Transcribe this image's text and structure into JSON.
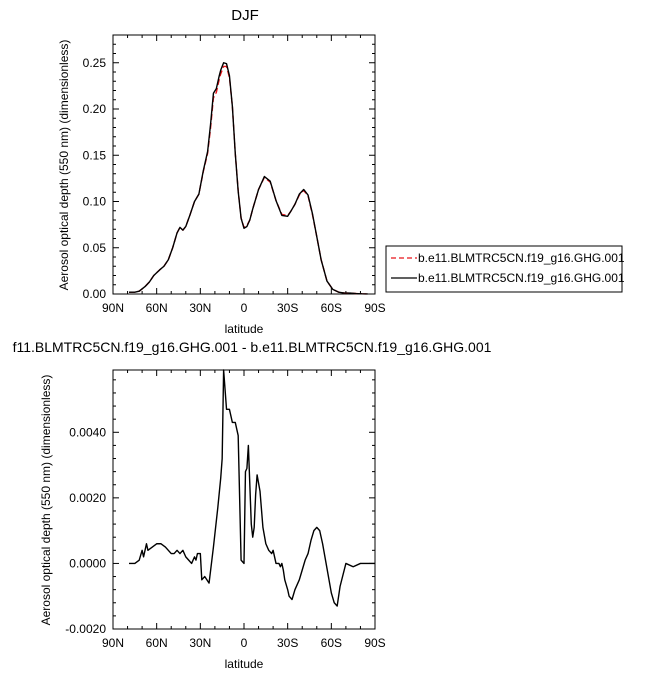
{
  "chart_data": [
    {
      "type": "line",
      "title": "DJF",
      "xlabel": "latitude",
      "ylabel": "Aerosol optical depth (550 nm) (dimensionless)",
      "xlim": [
        90,
        -90
      ],
      "ylim": [
        0,
        0.28
      ],
      "x_ticks": [
        "90N",
        "60N",
        "30N",
        "0",
        "30S",
        "60S",
        "90S"
      ],
      "x_tick_values": [
        90,
        60,
        30,
        0,
        -30,
        -60,
        -90
      ],
      "y_ticks": [
        "0.00",
        "0.05",
        "0.10",
        "0.15",
        "0.20",
        "0.25"
      ],
      "y_tick_values": [
        0,
        0.05,
        0.1,
        0.15,
        0.2,
        0.25
      ],
      "legend_position": "right",
      "x": [
        79,
        75,
        72,
        68,
        65,
        62,
        58,
        55,
        52,
        49,
        46,
        44,
        42,
        40,
        37,
        34,
        31,
        28,
        25,
        23,
        21,
        19,
        17,
        16,
        14,
        12,
        10,
        8,
        6,
        4,
        2,
        0,
        -2,
        -4,
        -6,
        -10,
        -14,
        -18,
        -22,
        -26,
        -30,
        -32,
        -35,
        -38,
        -41,
        -44,
        -47,
        -50,
        -53,
        -57,
        -61,
        -65,
        -69,
        -73,
        -77,
        -81,
        -85
      ],
      "series": [
        {
          "name": "b.e11.BLMTRC5CN.f19_g16.GHG.001",
          "color": "#e8141a",
          "dash": "dashed",
          "values": [
            0.002,
            0.002,
            0.003,
            0.008,
            0.013,
            0.02,
            0.026,
            0.03,
            0.037,
            0.05,
            0.066,
            0.072,
            0.069,
            0.073,
            0.086,
            0.1,
            0.108,
            0.132,
            0.152,
            0.179,
            0.212,
            0.218,
            0.232,
            0.238,
            0.246,
            0.246,
            0.234,
            0.203,
            0.152,
            0.112,
            0.082,
            0.072,
            0.074,
            0.08,
            0.092,
            0.113,
            0.126,
            0.121,
            0.101,
            0.086,
            0.085,
            0.089,
            0.097,
            0.107,
            0.112,
            0.106,
            0.086,
            0.062,
            0.037,
            0.014,
            0.005,
            0.002,
            0.001,
            0.001,
            0.0005,
            0.0002,
            0.0001
          ]
        },
        {
          "name": "b.e11.BLMTRC5CN.f19_g16.GHG.001",
          "color": "#000000",
          "dash": "solid",
          "values": [
            0.002,
            0.002,
            0.003,
            0.008,
            0.013,
            0.02,
            0.026,
            0.03,
            0.037,
            0.05,
            0.066,
            0.072,
            0.069,
            0.073,
            0.086,
            0.1,
            0.108,
            0.133,
            0.154,
            0.183,
            0.217,
            0.222,
            0.236,
            0.242,
            0.25,
            0.249,
            0.236,
            0.203,
            0.152,
            0.111,
            0.082,
            0.071,
            0.073,
            0.08,
            0.092,
            0.113,
            0.127,
            0.122,
            0.101,
            0.085,
            0.084,
            0.089,
            0.097,
            0.108,
            0.113,
            0.107,
            0.087,
            0.062,
            0.037,
            0.014,
            0.005,
            0.002,
            0.001,
            0.001,
            0.0005,
            0.0002,
            0.0001
          ]
        }
      ]
    },
    {
      "type": "line",
      "title": "f11.BLMTRC5CN.f19_g16.GHG.001 - b.e11.BLMTRC5CN.f19_g16.GHG.001",
      "xlabel": "latitude",
      "ylabel": "Aerosol optical depth (550 nm) (dimensionless)",
      "xlim": [
        90,
        -90
      ],
      "ylim": [
        -0.002,
        0.0059
      ],
      "x_ticks": [
        "90N",
        "60N",
        "30N",
        "0",
        "30S",
        "60S",
        "90S"
      ],
      "x_tick_values": [
        90,
        60,
        30,
        0,
        -30,
        -60,
        -90
      ],
      "y_ticks": [
        "-0.0020",
        "0.0000",
        "0.0020",
        "0.0040"
      ],
      "y_tick_values": [
        -0.002,
        0,
        0.002,
        0.004
      ],
      "x": [
        79,
        75,
        72,
        70,
        69,
        67,
        66,
        63,
        60,
        57,
        54,
        52,
        50,
        48,
        46,
        44,
        42,
        40,
        38,
        36,
        34,
        33,
        32,
        30,
        29,
        27,
        24,
        21,
        18,
        16,
        15,
        14,
        12,
        10,
        8,
        6,
        4,
        2,
        0,
        -1,
        -2,
        -3,
        -5,
        -6,
        -7,
        -8,
        -9,
        -11,
        -13,
        -15,
        -17,
        -19,
        -20,
        -22,
        -24,
        -25,
        -26,
        -27,
        -28,
        -30,
        -31,
        -33,
        -35,
        -38,
        -40,
        -42,
        -44,
        -46,
        -48,
        -50,
        -52,
        -54,
        -56,
        -58,
        -60,
        -62,
        -64,
        -66,
        -70,
        -75,
        -80,
        -85,
        -90
      ],
      "series": [
        {
          "name": "",
          "color": "#000000",
          "dash": "solid",
          "values": [
            0.0,
            0.0,
            0.0001,
            0.0004,
            0.0002,
            0.0006,
            0.0004,
            0.0005,
            0.0006,
            0.0006,
            0.0005,
            0.0004,
            0.0003,
            0.0003,
            0.0004,
            0.0003,
            0.0004,
            0.0002,
            0.0001,
            0.0,
            0.0002,
            0.0001,
            0.0003,
            0.0003,
            -0.0005,
            -0.0004,
            -0.0006,
            0.0005,
            0.0017,
            0.0026,
            0.0032,
            0.0059,
            0.0047,
            0.0047,
            0.0043,
            0.0043,
            0.0039,
            0.0001,
            0.0,
            0.0028,
            0.0029,
            0.0036,
            0.0012,
            0.0008,
            0.0011,
            0.0021,
            0.0027,
            0.0022,
            0.0011,
            0.0006,
            0.0004,
            0.0003,
            0.0004,
            0.0,
            0.0,
            -0.0001,
            0.0,
            -0.0002,
            -0.0005,
            -0.0008,
            -0.001,
            -0.0011,
            -0.0008,
            -0.0005,
            -0.0002,
            0.0001,
            0.0003,
            0.0007,
            0.001,
            0.0011,
            0.001,
            0.0006,
            0.0001,
            -0.0004,
            -0.0009,
            -0.0012,
            -0.0013,
            -0.0007,
            0.0,
            -0.0001,
            0.0,
            0.0,
            0.0
          ]
        }
      ]
    }
  ]
}
